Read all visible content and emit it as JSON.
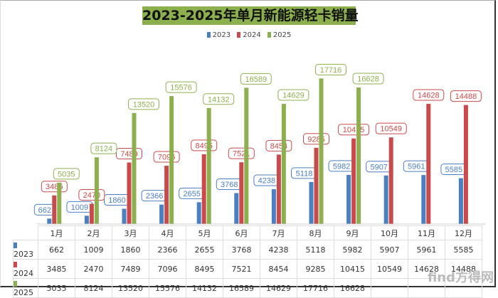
{
  "chart_data": {
    "type": "bar",
    "title": "2023-2025年单月新能源轻卡销量",
    "categories": [
      "1月",
      "2月",
      "3月",
      "4月",
      "5月",
      "6月",
      "7月",
      "8月",
      "9月",
      "10月",
      "11月",
      "12月"
    ],
    "series": [
      {
        "name": "2023",
        "color": "#4a7fc1",
        "values": [
          662,
          1009,
          1860,
          2366,
          2655,
          3768,
          4238,
          5118,
          5982,
          5907,
          5961,
          5585
        ]
      },
      {
        "name": "2024",
        "color": "#c94a4a",
        "values": [
          3485,
          2470,
          7489,
          7096,
          8495,
          7521,
          8454,
          9285,
          10415,
          10549,
          14628,
          14488
        ]
      },
      {
        "name": "2025",
        "color": "#8db04e",
        "values": [
          5035,
          8124,
          13520,
          15576,
          14132,
          16589,
          14629,
          17716,
          16628,
          null,
          null,
          null
        ]
      }
    ],
    "ylim": [
      0,
      20000
    ],
    "legend": "top",
    "data_table": true,
    "grid": false
  },
  "watermark": "find方得网"
}
